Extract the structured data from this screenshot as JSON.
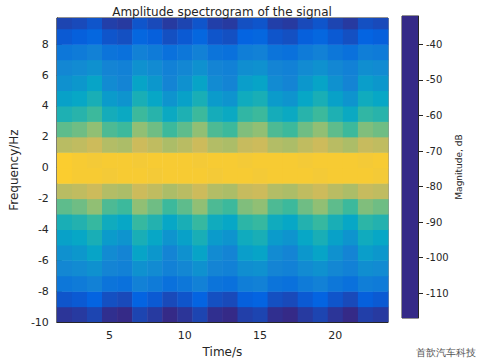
{
  "chart_data": {
    "type": "heatmap",
    "title": "Amplitude spectrogram of the signal",
    "x_label": "Time/s",
    "y_label": "Frequency/Hz",
    "annotation": "首歆汽车科技",
    "xlim": [
      1.5,
      23.5
    ],
    "xticks": [
      5,
      10,
      15,
      20
    ],
    "ylim": [
      -10,
      9.7
    ],
    "yticks": [
      -10,
      -8,
      -6,
      -4,
      -2,
      0,
      2,
      4,
      6,
      8
    ],
    "x_edges": [
      1.5,
      2.5,
      3.5,
      4.5,
      5.5,
      6.5,
      7.5,
      8.5,
      9.5,
      10.5,
      11.5,
      12.5,
      13.5,
      14.5,
      15.5,
      16.5,
      17.5,
      18.5,
      19.5,
      20.5,
      21.5,
      22.5,
      23.5
    ],
    "y_edges": [
      -10,
      -9,
      -8,
      -7,
      -6,
      -5,
      -4,
      -3,
      -2,
      -1,
      0,
      1,
      2,
      3,
      4,
      5,
      6,
      7,
      8,
      9,
      10
    ],
    "cells": [
      [
        -115,
        -114,
        -112,
        -116,
        -117,
        -112,
        -114,
        -117,
        -115,
        -112,
        -116,
        -117,
        -113,
        -112,
        -116,
        -117,
        -114,
        -112,
        -115,
        -117,
        -113,
        -114
      ],
      [
        -109,
        -108,
        -106,
        -110,
        -111,
        -106,
        -108,
        -111,
        -109,
        -106,
        -110,
        -111,
        -107,
        -106,
        -110,
        -111,
        -108,
        -106,
        -109,
        -111,
        -107,
        -108
      ],
      [
        -100,
        -99,
        -97,
        -101,
        -102,
        -97,
        -99,
        -102,
        -100,
        -97,
        -101,
        -102,
        -98,
        -97,
        -101,
        -102,
        -99,
        -97,
        -100,
        -102,
        -98,
        -99
      ],
      [
        -95,
        -94,
        -92,
        -96,
        -97,
        -92,
        -94,
        -97,
        -95,
        -92,
        -96,
        -97,
        -93,
        -92,
        -96,
        -97,
        -94,
        -92,
        -95,
        -97,
        -93,
        -94
      ],
      [
        -92,
        -90,
        -86,
        -94,
        -96,
        -86,
        -90,
        -96,
        -92,
        -86,
        -94,
        -96,
        -88,
        -86,
        -94,
        -96,
        -90,
        -86,
        -92,
        -96,
        -88,
        -90
      ],
      [
        -87,
        -85,
        -81,
        -89,
        -91,
        -81,
        -85,
        -91,
        -87,
        -81,
        -89,
        -91,
        -83,
        -81,
        -89,
        -91,
        -85,
        -81,
        -87,
        -91,
        -83,
        -85
      ],
      [
        -81,
        -79,
        -75,
        -83,
        -85,
        -75,
        -79,
        -85,
        -81,
        -75,
        -83,
        -85,
        -77,
        -75,
        -83,
        -85,
        -79,
        -75,
        -81,
        -85,
        -77,
        -79
      ],
      [
        -70,
        -68,
        -64,
        -72,
        -74,
        -64,
        -68,
        -74,
        -70,
        -64,
        -72,
        -74,
        -66,
        -64,
        -72,
        -74,
        -68,
        -64,
        -70,
        -74,
        -66,
        -68
      ],
      [
        -58,
        -57,
        -55,
        -59,
        -60,
        -55,
        -57,
        -60,
        -58,
        -55,
        -59,
        -60,
        -56,
        -55,
        -59,
        -60,
        -57,
        -55,
        -58,
        -60,
        -56,
        -57
      ],
      [
        -43,
        -44,
        -44,
        -45,
        -44,
        -44,
        -45,
        -44,
        -44,
        -44,
        -45,
        -44,
        -44,
        -45,
        -44,
        -44,
        -44,
        -45,
        -44,
        -44,
        -44,
        -45
      ],
      [
        -43,
        -44,
        -45,
        -44,
        -44,
        -45,
        -44,
        -44,
        -44,
        -45,
        -44,
        -44,
        -45,
        -44,
        -44,
        -44,
        -45,
        -44,
        -44,
        -44,
        -45,
        -44
      ],
      [
        -58,
        -57,
        -55,
        -59,
        -60,
        -55,
        -57,
        -60,
        -58,
        -55,
        -59,
        -60,
        -56,
        -55,
        -59,
        -60,
        -57,
        -55,
        -58,
        -60,
        -56,
        -57
      ],
      [
        -70,
        -68,
        -64,
        -72,
        -74,
        -64,
        -68,
        -74,
        -70,
        -64,
        -72,
        -74,
        -66,
        -64,
        -72,
        -74,
        -68,
        -64,
        -70,
        -74,
        -66,
        -68
      ],
      [
        -80,
        -78,
        -74,
        -82,
        -84,
        -74,
        -78,
        -84,
        -80,
        -74,
        -82,
        -84,
        -76,
        -74,
        -82,
        -84,
        -78,
        -74,
        -80,
        -84,
        -76,
        -78
      ],
      [
        -87,
        -85,
        -81,
        -89,
        -91,
        -81,
        -85,
        -91,
        -87,
        -81,
        -89,
        -91,
        -83,
        -81,
        -89,
        -91,
        -85,
        -81,
        -87,
        -91,
        -83,
        -85
      ],
      [
        -92,
        -90,
        -86,
        -94,
        -96,
        -86,
        -90,
        -96,
        -92,
        -86,
        -94,
        -96,
        -88,
        -86,
        -94,
        -96,
        -90,
        -86,
        -92,
        -96,
        -88,
        -90
      ],
      [
        -95,
        -94,
        -92,
        -96,
        -97,
        -92,
        -94,
        -97,
        -95,
        -92,
        -96,
        -97,
        -93,
        -92,
        -96,
        -97,
        -94,
        -92,
        -95,
        -97,
        -93,
        -94
      ],
      [
        -100,
        -99,
        -97,
        -101,
        -102,
        -97,
        -99,
        -102,
        -100,
        -97,
        -101,
        -102,
        -98,
        -97,
        -101,
        -102,
        -99,
        -97,
        -100,
        -102,
        -98,
        -99
      ],
      [
        -108,
        -107,
        -105,
        -109,
        -110,
        -105,
        -107,
        -110,
        -108,
        -105,
        -109,
        -110,
        -106,
        -105,
        -109,
        -110,
        -107,
        -105,
        -108,
        -110,
        -106,
        -107
      ],
      [
        -112,
        -111,
        -109,
        -113,
        -114,
        -109,
        -111,
        -114,
        -112,
        -109,
        -113,
        -114,
        -110,
        -109,
        -113,
        -114,
        -111,
        -109,
        -112,
        -114,
        -110,
        -111
      ]
    ],
    "colorbar": {
      "label": "Magnitude, dB",
      "range": [
        -117,
        -32
      ],
      "ticks": [
        -110,
        -100,
        -90,
        -80,
        -70,
        -60,
        -50,
        -40
      ]
    }
  }
}
